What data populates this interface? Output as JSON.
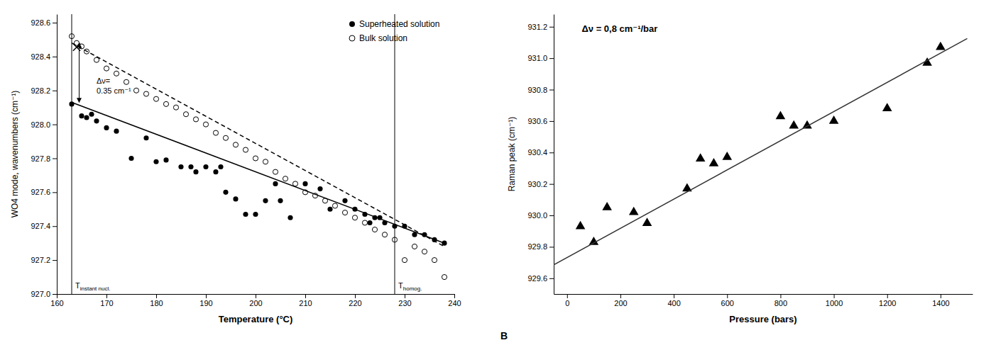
{
  "chart_data": [
    {
      "type": "scatter",
      "xlabel": "Temperature (°C)",
      "ylabel": "WO4 mode, wavenumbers (cm⁻¹)",
      "xlim": [
        160,
        240
      ],
      "ylim": [
        927.0,
        928.65
      ],
      "xticks": [
        160,
        170,
        180,
        190,
        200,
        210,
        220,
        230,
        240
      ],
      "yticks": [
        {
          "value": 927.0,
          "label": "927.0"
        },
        927.2,
        927.4,
        927.6,
        927.8,
        {
          "value": 928.0,
          "label": "928.0"
        },
        928.2,
        928.4,
        928.6
      ],
      "grid": false,
      "legend": "upper right",
      "series": [
        {
          "name": "Superheated solution",
          "type": "scatter",
          "marker": "circle",
          "color": "#000000",
          "x": [
            163,
            165,
            166,
            167,
            168,
            170,
            172,
            175,
            178,
            180,
            182,
            185,
            187,
            188,
            190,
            192,
            193,
            194,
            196,
            198,
            200,
            202,
            204,
            205,
            207,
            210,
            213,
            215,
            218,
            220,
            222,
            223,
            224,
            225,
            226,
            228,
            230,
            232,
            234,
            236,
            238
          ],
          "values": [
            928.12,
            928.05,
            928.04,
            928.06,
            928.02,
            927.98,
            927.96,
            927.8,
            927.92,
            927.78,
            927.79,
            927.75,
            927.75,
            927.72,
            927.75,
            927.72,
            927.75,
            927.6,
            927.56,
            927.47,
            927.47,
            927.55,
            927.65,
            927.55,
            927.45,
            927.65,
            927.62,
            927.5,
            927.55,
            927.5,
            927.47,
            927.42,
            927.45,
            927.45,
            927.42,
            927.4,
            927.4,
            927.35,
            927.35,
            927.32,
            927.3
          ]
        },
        {
          "name": "Bulk solution",
          "type": "scatter",
          "marker": "circle-open",
          "color": "#000000",
          "x": [
            163,
            164,
            165,
            166,
            168,
            170,
            172,
            174,
            176,
            178,
            180,
            182,
            184,
            186,
            188,
            190,
            192,
            194,
            196,
            198,
            200,
            202,
            204,
            206,
            208,
            210,
            212,
            214,
            216,
            218,
            220,
            222,
            224,
            226,
            228,
            230,
            232,
            234,
            236,
            238
          ],
          "values": [
            928.52,
            928.48,
            928.46,
            928.43,
            928.38,
            928.33,
            928.3,
            928.25,
            928.2,
            928.18,
            928.15,
            928.12,
            928.1,
            928.06,
            928.03,
            928.0,
            927.95,
            927.92,
            927.88,
            927.85,
            927.8,
            927.78,
            927.72,
            927.68,
            927.65,
            927.6,
            927.58,
            927.55,
            927.52,
            927.48,
            927.45,
            927.42,
            927.38,
            927.35,
            927.32,
            927.2,
            927.28,
            927.25,
            927.2,
            927.1
          ]
        },
        {
          "type": "line",
          "line_style": "solid",
          "color": "#000000",
          "x": [
            163,
            238
          ],
          "values": [
            928.13,
            927.3
          ]
        },
        {
          "type": "line",
          "line_style": "dashed",
          "color": "#000000",
          "x": [
            163,
            238
          ],
          "values": [
            928.48,
            927.28
          ]
        }
      ],
      "annotations": [
        {
          "type": "vline",
          "x": 163,
          "text": "T",
          "subscript": "instant nucl."
        },
        {
          "type": "vline",
          "x": 228,
          "text": "T",
          "subscript": "homog."
        },
        {
          "type": "arrow",
          "x": 164.5,
          "y": [
            928.48,
            928.13
          ]
        },
        {
          "type": "marker",
          "marker": "x",
          "x": 164,
          "y": 928.455
        },
        {
          "type": "text",
          "text": "Δν=\n0.35 cm⁻¹",
          "x": 168,
          "y": 928.28
        }
      ]
    },
    {
      "type": "scatter",
      "xlabel": "Pressure (bars)",
      "ylabel": "Raman peak (cm⁻¹)",
      "xlim": [
        -50,
        1520
      ],
      "ylim": [
        929.5,
        931.28
      ],
      "xticks": [
        0,
        200,
        400,
        600,
        800,
        1000,
        1200,
        1400
      ],
      "yticks": [
        929.6,
        929.8,
        {
          "value": 930.0,
          "label": "930.0"
        },
        930.2,
        930.4,
        930.6,
        930.8,
        {
          "value": 931.0,
          "label": "931.0"
        },
        931.2
      ],
      "grid": false,
      "series": [
        {
          "type": "scatter",
          "marker": "triangle",
          "color": "#000000",
          "x": [
            50,
            100,
            150,
            250,
            300,
            450,
            500,
            550,
            600,
            800,
            850,
            900,
            1000,
            1200,
            1350,
            1400
          ],
          "values": [
            929.93,
            929.83,
            930.05,
            930.02,
            929.95,
            930.17,
            930.36,
            930.33,
            930.37,
            930.63,
            930.57,
            930.57,
            930.6,
            930.68,
            930.97,
            931.07
          ]
        },
        {
          "type": "line",
          "line_style": "solid",
          "color": "#333333",
          "x": [
            -50,
            1500
          ],
          "values": [
            929.685,
            931.125
          ]
        }
      ],
      "annotations": [
        {
          "type": "text",
          "text": "Δν = 0,8 cm⁻¹/bar",
          "x": 55,
          "y": 931.22
        },
        {
          "type": "label",
          "text": "B"
        }
      ]
    }
  ]
}
